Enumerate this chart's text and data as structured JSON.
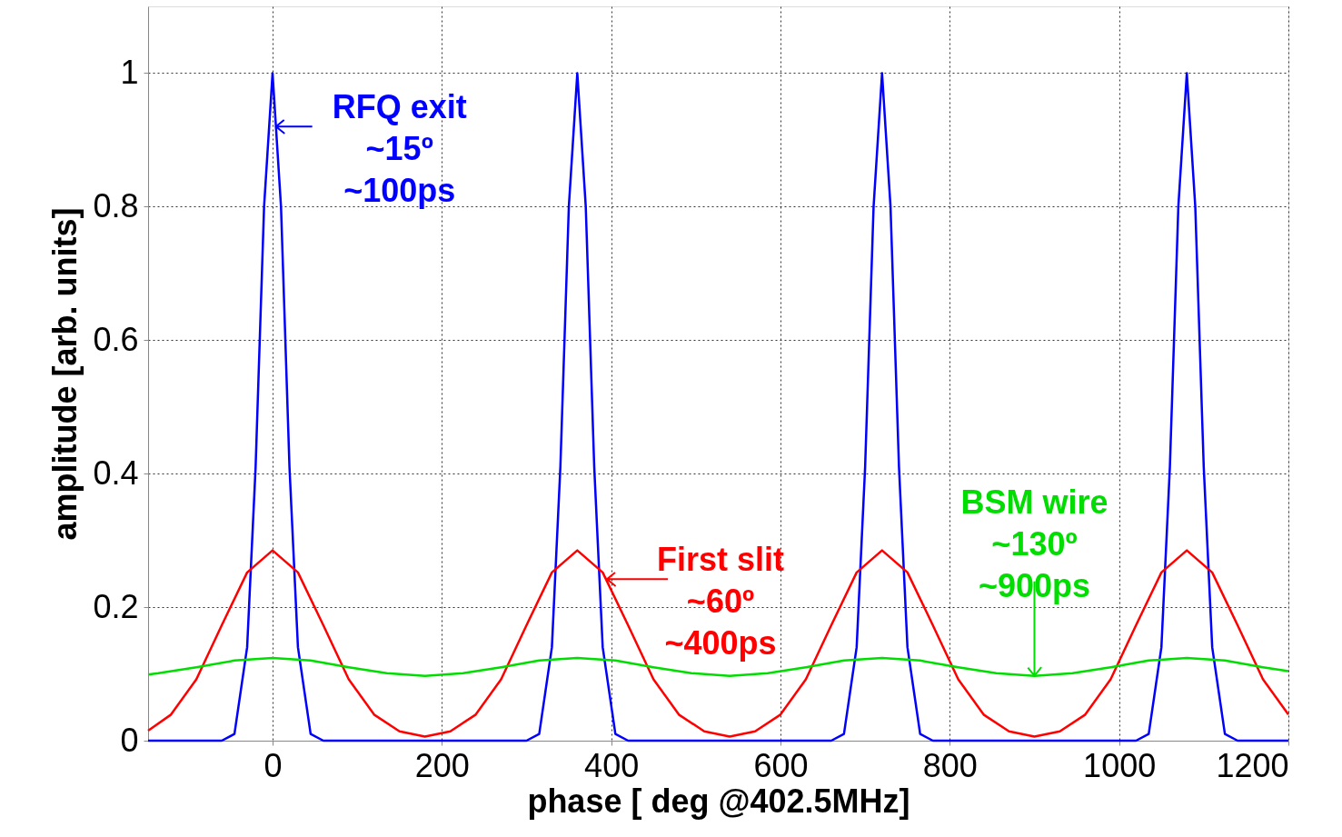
{
  "chart_data": {
    "type": "line",
    "xlabel": "phase [ deg @402.5MHz]",
    "ylabel": "amplitude [arb. units]",
    "xlim": [
      -147,
      1200
    ],
    "ylim": [
      0,
      1.1
    ],
    "xticks": [
      0,
      200,
      400,
      600,
      800,
      1000,
      1200
    ],
    "yticks": [
      0,
      0.2,
      0.4,
      0.6,
      0.8,
      1
    ],
    "grid": true,
    "marker": "none",
    "line_style": "solid",
    "series": [
      {
        "color": "#0000ff",
        "x": [
          -147,
          -60,
          -45,
          -30,
          -20,
          -10,
          0,
          10,
          20,
          30,
          45,
          60,
          300,
          315,
          330,
          340,
          350,
          360,
          370,
          380,
          390,
          405,
          420,
          660,
          675,
          690,
          700,
          710,
          720,
          730,
          740,
          750,
          765,
          780,
          1020,
          1035,
          1050,
          1060,
          1070,
          1080,
          1090,
          1100,
          1110,
          1125,
          1140,
          1200
        ],
        "values": [
          0,
          0,
          0.01,
          0.14,
          0.41,
          0.8,
          1,
          0.8,
          0.41,
          0.14,
          0.01,
          0,
          0,
          0.01,
          0.14,
          0.41,
          0.8,
          1,
          0.8,
          0.41,
          0.14,
          0.01,
          0,
          0,
          0.01,
          0.14,
          0.41,
          0.8,
          1,
          0.8,
          0.41,
          0.14,
          0.01,
          0,
          0,
          0.01,
          0.14,
          0.41,
          0.8,
          1,
          0.8,
          0.41,
          0.14,
          0.01,
          0,
          0
        ]
      },
      {
        "color": "#ff0000",
        "x": [
          -147,
          -120,
          -90,
          -60,
          -30,
          0,
          30,
          60,
          90,
          120,
          150,
          180,
          210,
          240,
          270,
          300,
          330,
          360,
          390,
          420,
          450,
          480,
          510,
          540,
          570,
          600,
          630,
          660,
          690,
          720,
          750,
          780,
          810,
          840,
          870,
          900,
          930,
          960,
          990,
          1020,
          1050,
          1080,
          1110,
          1140,
          1170,
          1200
        ],
        "values": [
          0.015,
          0.039,
          0.092,
          0.173,
          0.252,
          0.285,
          0.252,
          0.173,
          0.092,
          0.039,
          0.014,
          0.006,
          0.014,
          0.039,
          0.092,
          0.173,
          0.252,
          0.285,
          0.252,
          0.173,
          0.092,
          0.039,
          0.014,
          0.006,
          0.014,
          0.039,
          0.092,
          0.173,
          0.252,
          0.285,
          0.252,
          0.173,
          0.092,
          0.039,
          0.014,
          0.006,
          0.014,
          0.039,
          0.092,
          0.173,
          0.252,
          0.285,
          0.252,
          0.173,
          0.092,
          0.039
        ]
      },
      {
        "color": "#00dd00",
        "x": [
          -147,
          -135,
          -90,
          -45,
          0,
          45,
          90,
          135,
          180,
          225,
          270,
          315,
          360,
          405,
          450,
          495,
          540,
          585,
          630,
          675,
          720,
          765,
          810,
          855,
          900,
          945,
          990,
          1035,
          1080,
          1125,
          1170,
          1200
        ],
        "values": [
          0.099,
          0.101,
          0.11,
          0.12,
          0.124,
          0.12,
          0.11,
          0.101,
          0.097,
          0.101,
          0.11,
          0.12,
          0.124,
          0.12,
          0.11,
          0.101,
          0.097,
          0.101,
          0.11,
          0.12,
          0.124,
          0.12,
          0.11,
          0.101,
          0.097,
          0.101,
          0.11,
          0.12,
          0.124,
          0.12,
          0.11,
          0.104
        ]
      }
    ],
    "annotations": [
      {
        "text": "RFQ exit\n~15º\n~100ps",
        "x": 4,
        "y": 0.92
      },
      {
        "text": "First slit\n~60º\n~400ps",
        "x": 395,
        "y": 0.242
      },
      {
        "text": "BSM wire\n~130º\n~900ps",
        "x": 900,
        "y": 0.097
      }
    ]
  }
}
